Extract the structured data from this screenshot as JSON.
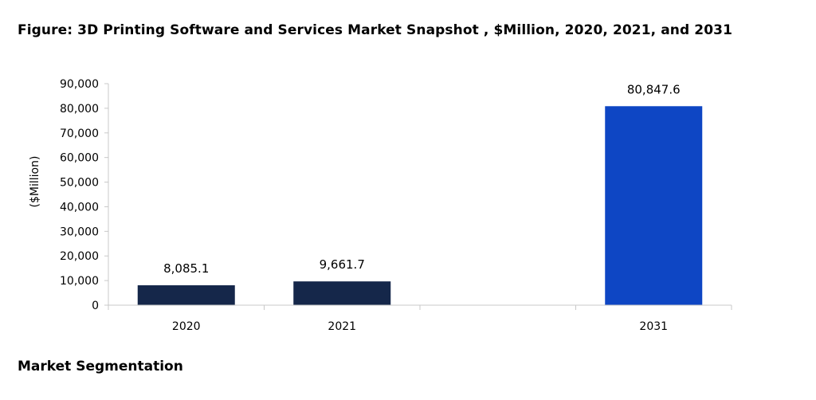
{
  "title": "Figure: 3D Printing Software and Services Market Snapshot , $Million, 2020, 2021, and 2031",
  "footer": "Market Segmentation",
  "colors": {
    "past": "#15274a",
    "forecast": "#0e46c4",
    "axis": "#c8c8c8"
  },
  "chart_data": {
    "type": "bar",
    "categories": [
      "2020",
      "2021",
      "",
      "2031"
    ],
    "values": [
      8085.1,
      9661.7,
      null,
      80847.6
    ],
    "data_labels": [
      "8,085.1",
      "9,661.7",
      "",
      "80,847.6"
    ],
    "ylabel": "($Million)",
    "xlabel": "",
    "ylim": [
      0,
      90000
    ],
    "yticks": [
      0,
      10000,
      20000,
      30000,
      40000,
      50000,
      60000,
      70000,
      80000,
      90000
    ],
    "ytick_labels": [
      "0",
      "10,000",
      "20,000",
      "30,000",
      "40,000",
      "50,000",
      "60,000",
      "70,000",
      "80,000",
      "90,000"
    ],
    "grid": false,
    "legend": "none"
  }
}
